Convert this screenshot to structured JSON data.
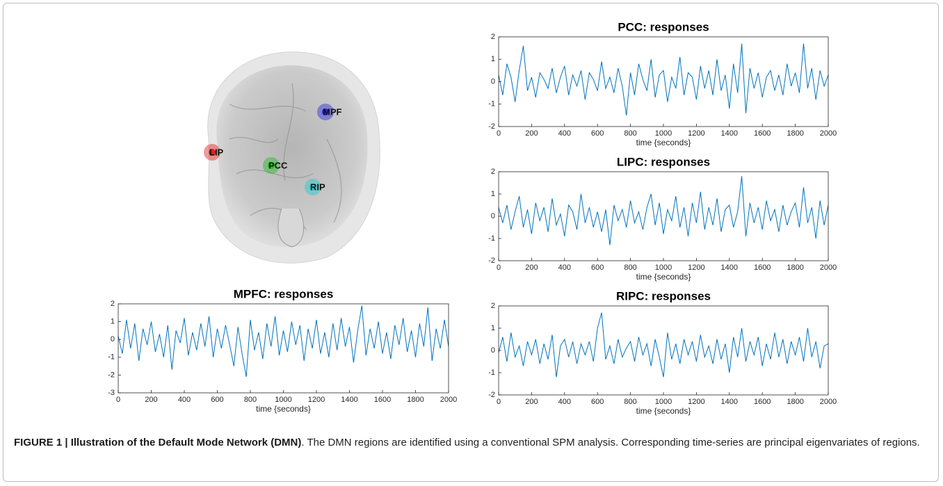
{
  "brain": {
    "regions": [
      {
        "label": "MPF",
        "color": "#2a2ae0"
      },
      {
        "label": "LIP",
        "color": "#e02020"
      },
      {
        "label": "PCC",
        "color": "#22bb22"
      },
      {
        "label": "RIP",
        "color": "#22cccc"
      }
    ]
  },
  "caption": {
    "label": "FIGURE 1 | Illustration of the Default Mode Network (DMN)",
    "text": ". The DMN regions are identified using a conventional SPM analysis. Corresponding time-series are principal eigenvariates of regions."
  },
  "chart_data": [
    {
      "type": "line",
      "title": "PCC: responses",
      "x_label": "time {seconds}",
      "color": "#0072bd",
      "xlim": [
        0,
        2000
      ],
      "xticks": [
        0,
        200,
        400,
        600,
        800,
        1000,
        1200,
        1400,
        1600,
        1800,
        2000
      ],
      "ylim": [
        -2,
        2
      ],
      "yticks": [
        -2,
        -1,
        0,
        1,
        2
      ],
      "x": [
        0,
        25,
        50,
        75,
        100,
        125,
        150,
        175,
        200,
        225,
        250,
        275,
        300,
        325,
        350,
        375,
        400,
        425,
        450,
        475,
        500,
        525,
        550,
        575,
        600,
        625,
        650,
        675,
        700,
        725,
        750,
        775,
        800,
        825,
        850,
        875,
        900,
        925,
        950,
        975,
        1000,
        1025,
        1050,
        1075,
        1100,
        1125,
        1150,
        1175,
        1200,
        1225,
        1250,
        1275,
        1300,
        1325,
        1350,
        1375,
        1400,
        1425,
        1450,
        1475,
        1500,
        1525,
        1550,
        1575,
        1600,
        1625,
        1650,
        1675,
        1700,
        1725,
        1750,
        1775,
        1800,
        1825,
        1850,
        1875,
        1900,
        1925,
        1950,
        1975,
        2000
      ],
      "values": [
        0.3,
        -0.6,
        0.8,
        0.2,
        -0.9,
        0.5,
        1.6,
        -0.4,
        0.2,
        -0.7,
        0.4,
        0.1,
        -0.3,
        0.6,
        -0.5,
        0.2,
        0.7,
        -0.6,
        0.3,
        -0.2,
        0.5,
        -0.8,
        0.4,
        0.1,
        -0.4,
        0.9,
        -0.3,
        0.2,
        -0.5,
        0.6,
        -0.2,
        -1.5,
        0.4,
        -0.6,
        0.8,
        0.1,
        -0.4,
        1.0,
        -0.7,
        0.3,
        0.5,
        -0.9,
        0.2,
        -0.3,
        1.1,
        -0.6,
        0.4,
        0.2,
        -0.8,
        0.7,
        -0.3,
        0.5,
        -0.6,
        1.0,
        -0.4,
        0.3,
        -1.2,
        0.8,
        -0.5,
        1.7,
        -1.4,
        0.6,
        -0.3,
        0.4,
        -0.7,
        0.2,
        0.5,
        -0.4,
        0.3,
        -0.6,
        0.8,
        -0.2,
        0.4,
        -0.5,
        1.7,
        -0.3,
        0.6,
        -0.8,
        0.5,
        -0.2,
        0.3
      ]
    },
    {
      "type": "line",
      "title": "LIPC: responses",
      "x_label": "time {seconds}",
      "color": "#0072bd",
      "xlim": [
        0,
        2000
      ],
      "xticks": [
        0,
        200,
        400,
        600,
        800,
        1000,
        1200,
        1400,
        1600,
        1800,
        2000
      ],
      "ylim": [
        -2,
        2
      ],
      "yticks": [
        -2,
        -1,
        0,
        1,
        2
      ],
      "x": [
        0,
        25,
        50,
        75,
        100,
        125,
        150,
        175,
        200,
        225,
        250,
        275,
        300,
        325,
        350,
        375,
        400,
        425,
        450,
        475,
        500,
        525,
        550,
        575,
        600,
        625,
        650,
        675,
        700,
        725,
        750,
        775,
        800,
        825,
        850,
        875,
        900,
        925,
        950,
        975,
        1000,
        1025,
        1050,
        1075,
        1100,
        1125,
        1150,
        1175,
        1200,
        1225,
        1250,
        1275,
        1300,
        1325,
        1350,
        1375,
        1400,
        1425,
        1450,
        1475,
        1500,
        1525,
        1550,
        1575,
        1600,
        1625,
        1650,
        1675,
        1700,
        1725,
        1750,
        1775,
        1800,
        1825,
        1850,
        1875,
        1900,
        1925,
        1950,
        1975,
        2000
      ],
      "values": [
        0.4,
        -0.3,
        0.5,
        -0.6,
        0.2,
        0.9,
        -0.5,
        0.3,
        -0.8,
        0.6,
        -0.2,
        0.4,
        -0.7,
        0.8,
        -0.4,
        0.1,
        -0.9,
        0.5,
        0.2,
        -0.6,
        1.0,
        -0.3,
        0.4,
        -0.5,
        0.2,
        -0.7,
        0.3,
        -1.3,
        0.5,
        -0.2,
        0.3,
        -0.5,
        0.7,
        -0.3,
        0.2,
        -0.6,
        0.4,
        1.0,
        -0.4,
        0.6,
        -0.8,
        0.3,
        -0.2,
        0.9,
        -0.5,
        0.4,
        -0.9,
        0.6,
        -0.3,
        1.1,
        -0.6,
        0.4,
        -0.4,
        0.8,
        -0.7,
        0.3,
        0.5,
        -0.5,
        0.2,
        1.8,
        -0.9,
        0.6,
        -0.3,
        0.4,
        -0.6,
        0.7,
        -0.2,
        0.3,
        -0.7,
        0.5,
        -0.4,
        0.2,
        0.6,
        -0.5,
        1.3,
        -0.3,
        0.4,
        -1.0,
        0.7,
        -0.4,
        0.5
      ]
    },
    {
      "type": "line",
      "title": "MPFC: responses",
      "x_label": "time {seconds}",
      "color": "#0072bd",
      "xlim": [
        0,
        2000
      ],
      "xticks": [
        0,
        200,
        400,
        600,
        800,
        1000,
        1200,
        1400,
        1600,
        1800,
        2000
      ],
      "ylim": [
        -3,
        2
      ],
      "yticks": [
        -3,
        -2,
        -1,
        0,
        1,
        2
      ],
      "x": [
        0,
        25,
        50,
        75,
        100,
        125,
        150,
        175,
        200,
        225,
        250,
        275,
        300,
        325,
        350,
        375,
        400,
        425,
        450,
        475,
        500,
        525,
        550,
        575,
        600,
        625,
        650,
        675,
        700,
        725,
        750,
        775,
        800,
        825,
        850,
        875,
        900,
        925,
        950,
        975,
        1000,
        1025,
        1050,
        1075,
        1100,
        1125,
        1150,
        1175,
        1200,
        1225,
        1250,
        1275,
        1300,
        1325,
        1350,
        1375,
        1400,
        1425,
        1450,
        1475,
        1500,
        1525,
        1550,
        1575,
        1600,
        1625,
        1650,
        1675,
        1700,
        1725,
        1750,
        1775,
        1800,
        1825,
        1850,
        1875,
        1900,
        1925,
        1950,
        1975,
        2000
      ],
      "values": [
        0.2,
        -0.8,
        1.1,
        -0.5,
        0.9,
        -1.2,
        0.6,
        -0.3,
        1.0,
        -0.7,
        0.3,
        -1.0,
        0.8,
        -1.7,
        0.5,
        -0.2,
        1.2,
        -0.9,
        0.4,
        -0.6,
        0.9,
        -0.4,
        1.3,
        -1.0,
        0.6,
        -0.5,
        0.8,
        -0.3,
        -1.5,
        0.7,
        -0.8,
        -2.1,
        1.1,
        -0.6,
        0.4,
        -1.1,
        0.9,
        -0.4,
        1.3,
        -0.9,
        0.5,
        -0.7,
        1.0,
        -0.3,
        0.8,
        -1.2,
        0.6,
        -0.5,
        1.1,
        -0.8,
        0.4,
        -1.0,
        0.9,
        -0.6,
        1.2,
        -0.4,
        0.7,
        -1.3,
        0.5,
        1.9,
        -0.9,
        0.6,
        -0.5,
        1.0,
        -0.8,
        0.4,
        -1.1,
        0.8,
        -0.3,
        1.2,
        -0.7,
        0.5,
        -1.0,
        0.9,
        -0.4,
        1.8,
        -1.2,
        0.6,
        -0.5,
        1.1,
        -0.4
      ]
    },
    {
      "type": "line",
      "title": "RIPC: responses",
      "x_label": "time {seconds}",
      "color": "#0072bd",
      "xlim": [
        0,
        2000
      ],
      "xticks": [
        0,
        200,
        400,
        600,
        800,
        1000,
        1200,
        1400,
        1600,
        1800,
        2000
      ],
      "ylim": [
        -2,
        2
      ],
      "yticks": [
        -2,
        -1,
        0,
        1,
        2
      ],
      "x": [
        0,
        25,
        50,
        75,
        100,
        125,
        150,
        175,
        200,
        225,
        250,
        275,
        300,
        325,
        350,
        375,
        400,
        425,
        450,
        475,
        500,
        525,
        550,
        575,
        600,
        625,
        650,
        675,
        700,
        725,
        750,
        775,
        800,
        825,
        850,
        875,
        900,
        925,
        950,
        975,
        1000,
        1025,
        1050,
        1075,
        1100,
        1125,
        1150,
        1175,
        1200,
        1225,
        1250,
        1275,
        1300,
        1325,
        1350,
        1375,
        1400,
        1425,
        1450,
        1475,
        1500,
        1525,
        1550,
        1575,
        1600,
        1625,
        1650,
        1675,
        1700,
        1725,
        1750,
        1775,
        1800,
        1825,
        1850,
        1875,
        1900,
        1925,
        1950,
        1975,
        2000
      ],
      "values": [
        -0.1,
        0.6,
        -0.5,
        0.8,
        -0.3,
        0.2,
        -0.7,
        0.4,
        -0.2,
        0.5,
        -0.6,
        0.3,
        -0.4,
        0.7,
        -1.2,
        0.2,
        0.5,
        -0.3,
        0.4,
        -0.6,
        0.3,
        -0.2,
        0.4,
        -0.5,
        1.0,
        1.7,
        -0.4,
        0.2,
        -0.6,
        0.5,
        -0.3,
        0.1,
        0.4,
        -0.5,
        0.6,
        -0.2,
        0.3,
        -0.7,
        0.5,
        -0.3,
        -1.2,
        0.8,
        -0.4,
        0.3,
        -0.6,
        0.5,
        -0.2,
        0.4,
        -0.5,
        0.7,
        -0.3,
        0.2,
        -0.6,
        0.5,
        -0.4,
        0.3,
        -1.0,
        0.6,
        -0.3,
        1.0,
        -0.5,
        0.4,
        -0.2,
        0.6,
        -0.7,
        0.3,
        -0.4,
        0.8,
        -0.3,
        0.5,
        -0.6,
        0.4,
        -0.2,
        0.6,
        -0.5,
        1.0,
        -0.3,
        0.4,
        -0.8,
        0.2,
        0.3
      ]
    }
  ]
}
